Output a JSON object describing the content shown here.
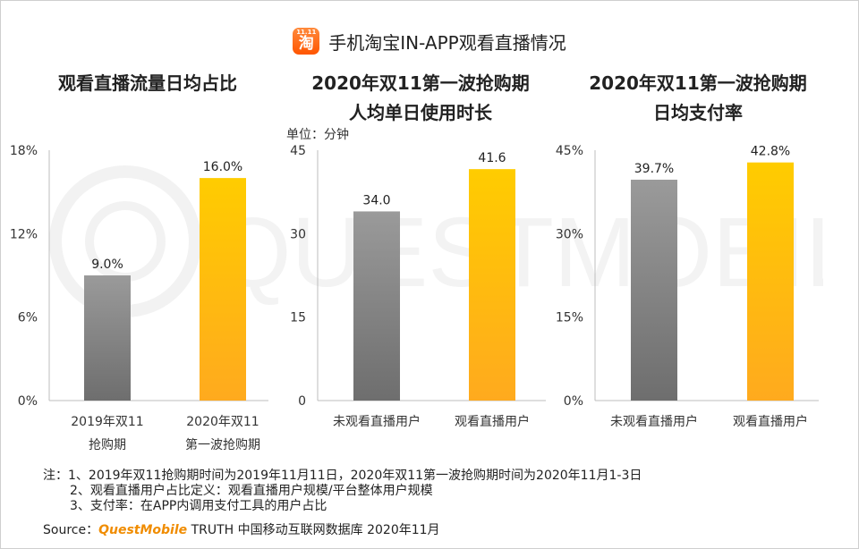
{
  "header": {
    "logo_top": "11.11",
    "logo_char": "淘",
    "title": "手机淘宝IN-APP观看直播情况"
  },
  "panels": [
    {
      "title_lines": [
        "观看直播流量日均占比"
      ]
    },
    {
      "title_lines": [
        "2020年双11第一波抢购期",
        "人均单日使用时长"
      ],
      "unit": "单位：分钟"
    },
    {
      "title_lines": [
        "2020年双11第一波抢购期",
        "日均支付率"
      ]
    }
  ],
  "chart_data": [
    {
      "type": "bar",
      "title": "观看直播流量日均占比",
      "categories": [
        [
          "2019年双11",
          "抢购期"
        ],
        [
          "2020年双11",
          "第一波抢购期"
        ]
      ],
      "values": [
        9.0,
        16.0
      ],
      "labels": [
        "9.0%",
        "16.0%"
      ],
      "ylim": [
        0,
        18
      ],
      "yticks": [
        "0%",
        "6%",
        "12%",
        "18%"
      ],
      "ytick_values": [
        0,
        6,
        12,
        18
      ],
      "colors": [
        "#808080",
        "#ffc000"
      ]
    },
    {
      "type": "bar",
      "title": "2020年双11第一波抢购期 人均单日使用时长",
      "unit": "单位：分钟",
      "categories": [
        [
          "未观看直播用户"
        ],
        [
          "观看直播用户"
        ]
      ],
      "values": [
        34.0,
        41.6
      ],
      "labels": [
        "34.0",
        "41.6"
      ],
      "ylim": [
        0,
        45
      ],
      "yticks": [
        "0",
        "15",
        "30",
        "45"
      ],
      "ytick_values": [
        0,
        15,
        30,
        45
      ],
      "colors": [
        "#808080",
        "#ffc000"
      ]
    },
    {
      "type": "bar",
      "title": "2020年双11第一波抢购期 日均支付率",
      "categories": [
        [
          "未观看直播用户"
        ],
        [
          "观看直播用户"
        ]
      ],
      "values": [
        39.7,
        42.8
      ],
      "labels": [
        "39.7%",
        "42.8%"
      ],
      "ylim": [
        0,
        45
      ],
      "yticks": [
        "0%",
        "15%",
        "30%",
        "45%"
      ],
      "ytick_values": [
        0,
        15,
        30,
        45
      ],
      "colors": [
        "#808080",
        "#ffc000"
      ]
    }
  ],
  "notes": {
    "line1": "注：1、2019年双11抢购期时间为2019年11月11日，2020年双11第一波抢购期时间为2020年11月1-3日",
    "line2": "2、观看直播用户占比定义：观看直播用户规模/平台整体用户规模",
    "line3": "3、支付率：在APP内调用支付工具的用户占比"
  },
  "source": {
    "prefix": "Source：",
    "brand": "QuestMobile",
    "suffix": " TRUTH 中国移动互联网数据库 2020年11月"
  },
  "watermark": {
    "text": "QUESTMOBILE"
  }
}
